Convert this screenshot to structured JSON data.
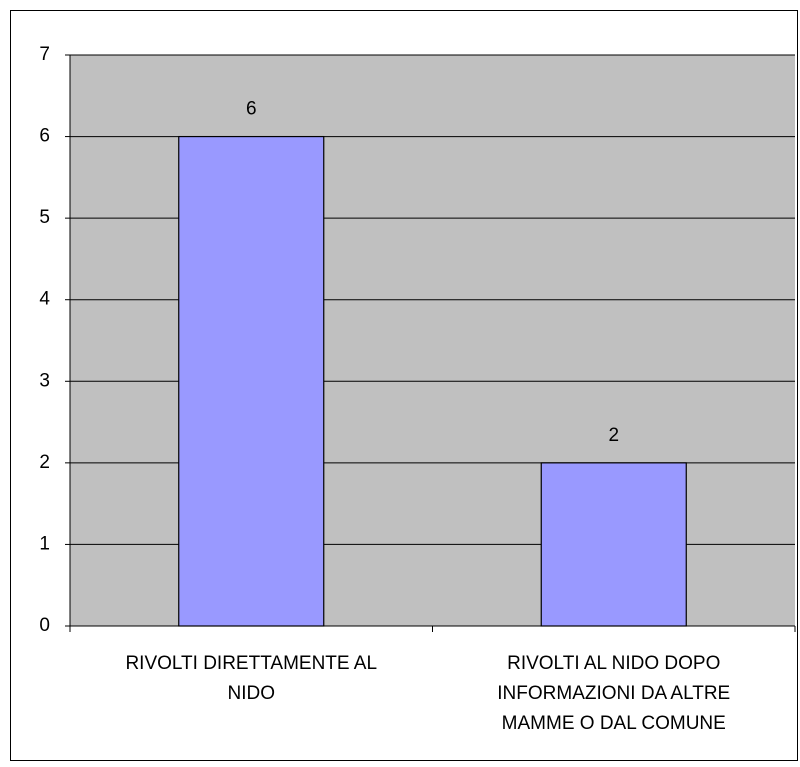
{
  "chart_data": {
    "type": "bar",
    "categories": [
      "RIVOLTI DIRETTAMENTE AL NIDO",
      "RIVOLTI AL NIDO DOPO INFORMAZIONI DA ALTRE MAMME O DAL COMUNE"
    ],
    "values": [
      6,
      2
    ],
    "color": "#9999ff",
    "ylim": [
      0,
      7
    ],
    "yticks": [
      0,
      1,
      2,
      3,
      4,
      5,
      6,
      7
    ],
    "grid": true
  }
}
